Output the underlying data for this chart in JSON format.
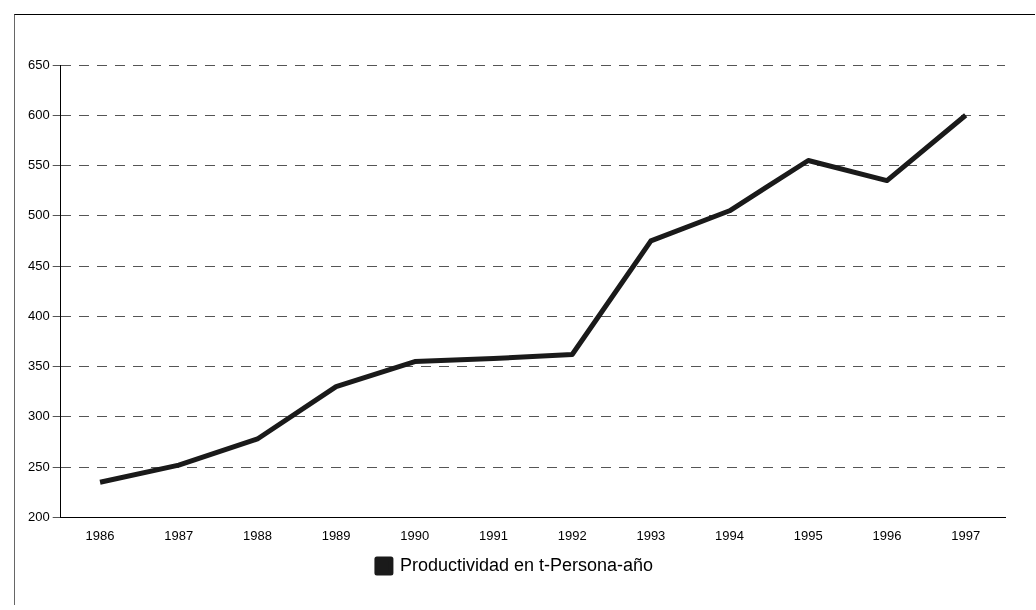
{
  "chart_data": {
    "type": "line",
    "categories": [
      "1986",
      "1987",
      "1988",
      "1989",
      "1990",
      "1991",
      "1992",
      "1993",
      "1994",
      "1995",
      "1996",
      "1997"
    ],
    "series": [
      {
        "name": "Productividad en t-Persona-año",
        "color": "#1a1a1a",
        "values": [
          235,
          252,
          278,
          330,
          355,
          358,
          362,
          475,
          505,
          555,
          535,
          600
        ]
      }
    ],
    "ylim": [
      200,
      650
    ],
    "yticks": [
      200,
      250,
      300,
      350,
      400,
      450,
      500,
      550,
      600,
      650
    ],
    "grid": "y",
    "legend": "bottom",
    "marker": "none",
    "line_style": "solid"
  }
}
